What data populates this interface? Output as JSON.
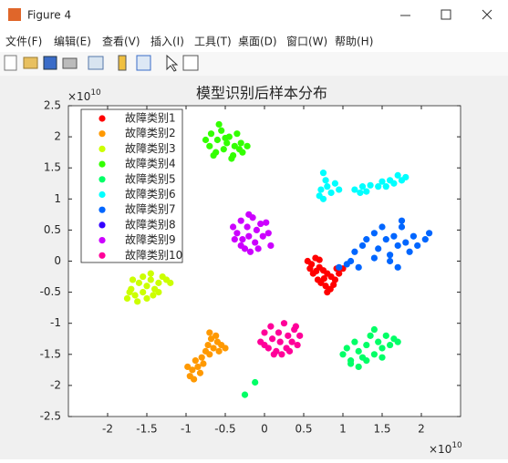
{
  "window": {
    "title": "Figure 4",
    "menu": [
      "文件(F)",
      "编辑(E)",
      "查看(V)",
      "插入(I)",
      "工具(T)",
      "桌面(D)",
      "窗口(W)",
      "帮助(H)"
    ]
  },
  "chart_data": {
    "type": "scatter",
    "title": "模型识别后样本分布",
    "x_scale": {
      "base": "×10",
      "power": "10"
    },
    "y_scale": {
      "base": "×10",
      "power": "10"
    },
    "xlim": [
      -2.5,
      2.5
    ],
    "xticks": [
      -2,
      -1.5,
      -1,
      -0.5,
      0,
      0.5,
      1,
      1.5,
      2
    ],
    "ylim": [
      -2.5,
      2.5
    ],
    "yticks": [
      -2.5,
      -2,
      -1.5,
      -1,
      -0.5,
      0,
      0.5,
      1,
      1.5,
      2,
      2.5
    ],
    "grid": false,
    "legend": "upper left",
    "series": [
      {
        "name": "故障类别1",
        "color": "#ff0000",
        "x": [
          0.55,
          0.6,
          0.65,
          0.7,
          0.75,
          0.8,
          0.85,
          0.9,
          0.62,
          0.68,
          0.72,
          0.78,
          0.84,
          0.58,
          0.92,
          0.95,
          0.76,
          0.66,
          0.88,
          0.8,
          1.0,
          0.7
        ],
        "y": [
          0.0,
          -0.05,
          0.05,
          -0.1,
          -0.15,
          -0.2,
          -0.25,
          -0.3,
          -0.2,
          -0.3,
          -0.35,
          -0.4,
          -0.45,
          -0.12,
          -0.12,
          -0.2,
          -0.28,
          -0.16,
          -0.38,
          -0.5,
          -0.12,
          0.02
        ]
      },
      {
        "name": "故障类别2",
        "color": "#ff9900",
        "x": [
          -0.95,
          -0.9,
          -0.92,
          -0.85,
          -0.88,
          -0.8,
          -0.78,
          -0.75,
          -0.7,
          -0.72,
          -0.65,
          -0.68,
          -0.6,
          -0.55,
          -0.62,
          -0.58,
          -0.5,
          -0.82,
          -0.7,
          -0.98
        ],
        "y": [
          -1.85,
          -1.9,
          -1.75,
          -1.7,
          -1.6,
          -1.55,
          -1.65,
          -1.45,
          -1.5,
          -1.35,
          -1.4,
          -1.25,
          -1.3,
          -1.35,
          -1.2,
          -1.45,
          -1.4,
          -1.8,
          -1.15,
          -1.7
        ]
      },
      {
        "name": "故障类别3",
        "color": "#ccff00",
        "x": [
          -1.75,
          -1.7,
          -1.65,
          -1.6,
          -1.55,
          -1.5,
          -1.45,
          -1.4,
          -1.35,
          -1.3,
          -1.25,
          -1.5,
          -1.62,
          -1.42,
          -1.2,
          -1.68,
          -1.55,
          -1.35,
          -1.72,
          -1.45
        ],
        "y": [
          -0.6,
          -0.45,
          -0.55,
          -0.35,
          -0.5,
          -0.4,
          -0.3,
          -0.45,
          -0.35,
          -0.25,
          -0.3,
          -0.6,
          -0.65,
          -0.55,
          -0.35,
          -0.3,
          -0.25,
          -0.5,
          -0.5,
          -0.2
        ]
      },
      {
        "name": "故障类别4",
        "color": "#33ff00",
        "x": [
          -0.75,
          -0.7,
          -0.68,
          -0.62,
          -0.6,
          -0.55,
          -0.52,
          -0.48,
          -0.45,
          -0.4,
          -0.38,
          -0.35,
          -0.3,
          -0.28,
          -0.22,
          -0.58,
          -0.65,
          -0.42,
          -0.5,
          -0.32
        ],
        "y": [
          1.95,
          1.85,
          2.05,
          1.75,
          1.95,
          2.1,
          1.8,
          1.9,
          2.0,
          1.7,
          1.85,
          2.05,
          1.9,
          1.75,
          1.85,
          2.2,
          1.7,
          1.65,
          1.98,
          1.8
        ]
      },
      {
        "name": "故障类别5",
        "color": "#00ff66",
        "x": [
          1.0,
          1.05,
          1.1,
          1.15,
          1.2,
          1.25,
          1.3,
          1.35,
          1.4,
          1.45,
          1.5,
          1.55,
          1.6,
          1.65,
          1.7,
          1.2,
          1.1,
          1.4,
          1.3,
          1.5,
          -0.25,
          -0.12
        ],
        "y": [
          -1.5,
          -1.4,
          -1.6,
          -1.3,
          -1.45,
          -1.55,
          -1.35,
          -1.2,
          -1.5,
          -1.3,
          -1.4,
          -1.2,
          -1.35,
          -1.25,
          -1.3,
          -1.7,
          -1.65,
          -1.1,
          -1.6,
          -1.55,
          -2.15,
          -1.95
        ]
      },
      {
        "name": "故障类别6",
        "color": "#00ffff",
        "x": [
          0.7,
          0.72,
          0.75,
          0.8,
          0.78,
          0.85,
          0.9,
          0.95,
          0.75,
          1.15,
          1.25,
          1.3,
          1.35,
          1.45,
          1.5,
          1.55,
          1.6,
          1.65,
          1.7,
          1.75,
          1.8,
          1.22
        ],
        "y": [
          1.05,
          1.15,
          1.0,
          1.2,
          1.3,
          1.1,
          1.25,
          1.15,
          1.42,
          1.15,
          1.2,
          1.12,
          1.22,
          1.2,
          1.28,
          1.2,
          1.3,
          1.25,
          1.38,
          1.3,
          1.35,
          1.1
        ]
      },
      {
        "name": "故障类别7",
        "color": "#0066ff",
        "x": [
          1.15,
          1.25,
          1.3,
          1.4,
          1.45,
          1.5,
          1.55,
          1.6,
          1.65,
          1.7,
          1.75,
          1.8,
          1.85,
          1.9,
          1.95,
          2.05,
          1.7,
          1.6,
          1.2,
          1.1,
          1.05,
          0.95,
          1.75,
          2.1,
          1.4
        ],
        "y": [
          0.15,
          0.25,
          0.35,
          0.45,
          0.2,
          0.55,
          0.35,
          0.1,
          0.4,
          0.25,
          0.55,
          0.3,
          0.15,
          0.4,
          0.25,
          0.35,
          -0.1,
          0.0,
          -0.1,
          0.0,
          -0.05,
          -0.1,
          0.65,
          0.45,
          0.05
        ]
      },
      {
        "name": "故障类别8",
        "color": "#3300ff",
        "x": [],
        "y": []
      },
      {
        "name": "故障类别9",
        "color": "#cc00ff",
        "x": [
          -0.4,
          -0.35,
          -0.3,
          -0.28,
          -0.22,
          -0.2,
          -0.15,
          -0.12,
          -0.1,
          -0.05,
          -0.02,
          0.05,
          0.08,
          -0.25,
          -0.18,
          -0.38,
          -0.3,
          -0.08,
          0.02,
          -0.2
        ],
        "y": [
          0.55,
          0.45,
          0.65,
          0.35,
          0.55,
          0.4,
          0.7,
          0.3,
          0.5,
          0.6,
          0.4,
          0.45,
          0.25,
          0.2,
          0.15,
          0.35,
          0.25,
          0.2,
          0.62,
          0.75
        ]
      },
      {
        "name": "故障类别10",
        "color": "#ff0099",
        "x": [
          -0.05,
          0.0,
          0.05,
          0.08,
          0.1,
          0.15,
          0.18,
          0.2,
          0.25,
          0.28,
          0.3,
          0.35,
          0.38,
          0.42,
          0.45,
          0.12,
          0.22,
          0.32,
          0.0,
          0.4
        ],
        "y": [
          -1.3,
          -1.15,
          -1.4,
          -1.05,
          -1.25,
          -1.45,
          -1.15,
          -1.3,
          -1.0,
          -1.4,
          -1.2,
          -1.3,
          -1.1,
          -1.35,
          -1.2,
          -1.5,
          -1.5,
          -1.45,
          -1.35,
          -1.05
        ]
      }
    ]
  }
}
